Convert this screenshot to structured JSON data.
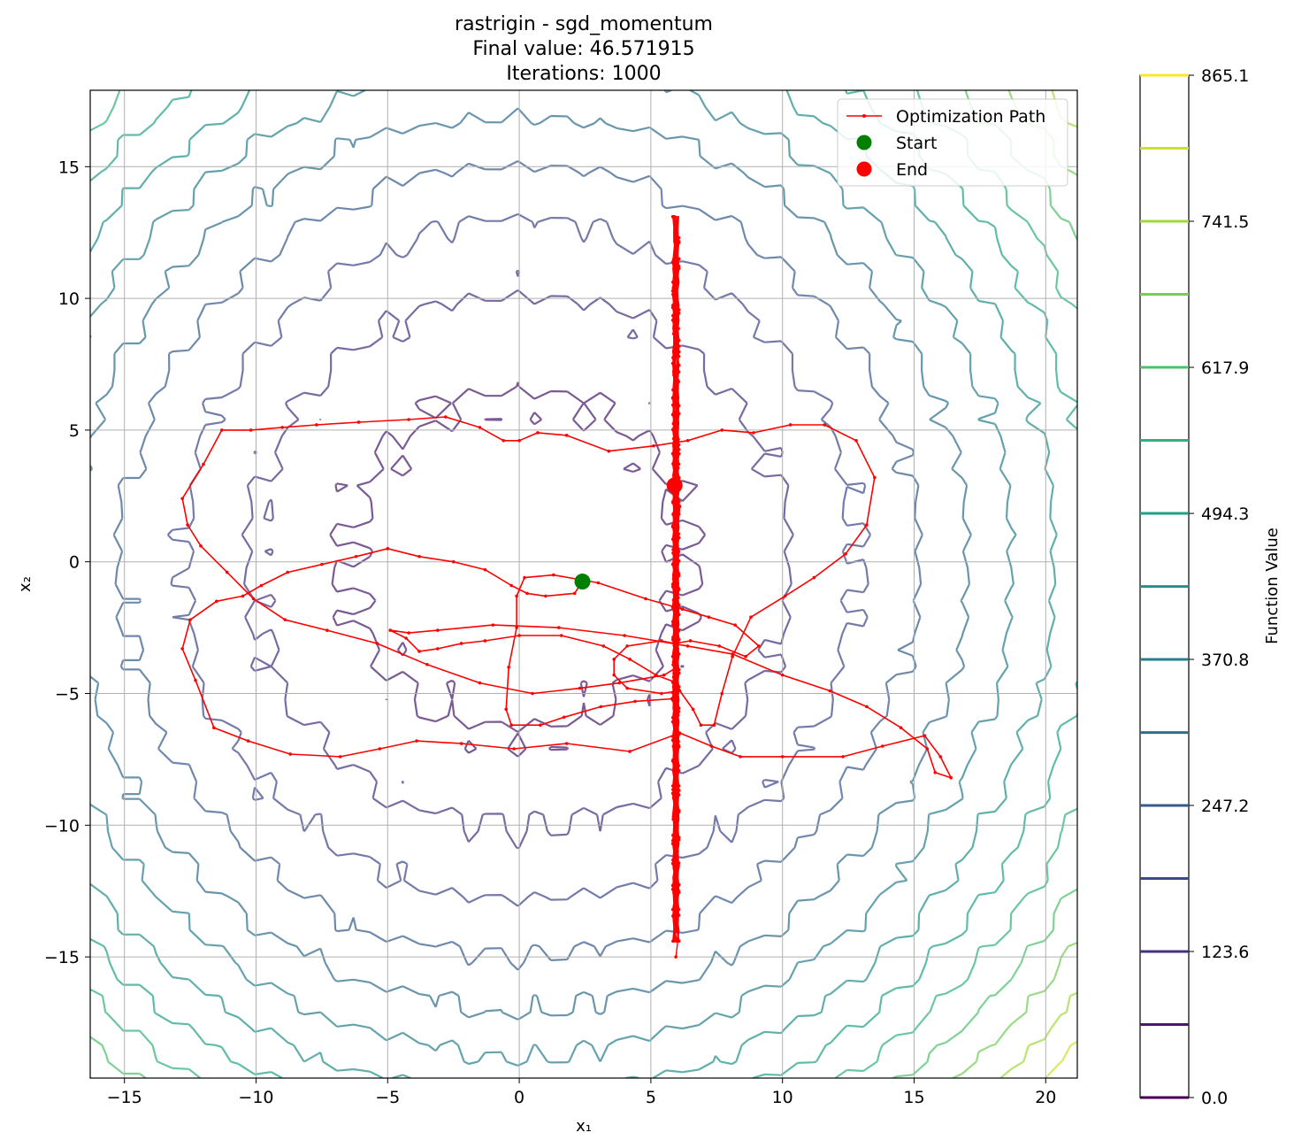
{
  "chart_data": {
    "type": "contour-line",
    "title_lines": [
      "rastrigin - sgd_momentum",
      "Final value: 46.571915",
      "Iterations: 1000"
    ],
    "xlabel": "x₁",
    "ylabel": "x₂",
    "xlim": [
      -16.3,
      21.2
    ],
    "ylim": [
      -19.6,
      17.9
    ],
    "xticks": [
      -15,
      -10,
      -5,
      0,
      5,
      10,
      15,
      20
    ],
    "xtick_labels": [
      "−15",
      "−10",
      "−5",
      "0",
      "5",
      "10",
      "15",
      "20"
    ],
    "yticks": [
      -15,
      -10,
      -5,
      0,
      5,
      10,
      15
    ],
    "ytick_labels": [
      "−15",
      "−10",
      "−5",
      "0",
      "5",
      "10",
      "15"
    ],
    "grid": true,
    "legend": {
      "position": "top-right",
      "entries": [
        "Optimization Path",
        "Start",
        "End"
      ]
    },
    "colorbar": {
      "label": "Function Value",
      "ticks": [
        0.0,
        123.6,
        247.2,
        370.8,
        494.3,
        617.9,
        741.5,
        865.1
      ],
      "tick_labels": [
        "0.0",
        "123.6",
        "247.2",
        "370.8",
        "494.3",
        "617.9",
        "741.5",
        "865.1"
      ],
      "levels": [
        61.8,
        123.6,
        185.4,
        247.2,
        308.9,
        370.8,
        432.5,
        494.3,
        556.1,
        617.9,
        679.7,
        741.5,
        803.3,
        865.1
      ],
      "colormap": "viridis"
    },
    "start": {
      "x": 2.4,
      "y": -0.75
    },
    "end": {
      "x": 5.9,
      "y": 2.9
    },
    "path_color": "#ff0000",
    "start_color": "#008000",
    "end_color": "#ff0000",
    "path": [
      [
        2.4,
        -0.75
      ],
      [
        2.1,
        -1.2
      ],
      [
        1.0,
        -1.3
      ],
      [
        0.3,
        -1.2
      ],
      [
        -0.3,
        -0.9
      ],
      [
        -1.3,
        -0.3
      ],
      [
        -2.5,
        0.0
      ],
      [
        -3.8,
        0.2
      ],
      [
        -5.0,
        0.5
      ],
      [
        -6.2,
        0.2
      ],
      [
        -7.5,
        -0.1
      ],
      [
        -8.8,
        -0.4
      ],
      [
        -9.8,
        -0.9
      ],
      [
        -10.5,
        -1.3
      ],
      [
        -11.5,
        -1.5
      ],
      [
        -12.5,
        -2.2
      ],
      [
        -12.8,
        -3.3
      ],
      [
        -12.3,
        -4.5
      ],
      [
        -11.6,
        -6.3
      ],
      [
        -10.3,
        -6.8
      ],
      [
        -8.7,
        -7.3
      ],
      [
        -6.8,
        -7.4
      ],
      [
        -5.3,
        -7.1
      ],
      [
        -3.9,
        -6.8
      ],
      [
        -2.2,
        -6.9
      ],
      [
        -0.2,
        -7.1
      ],
      [
        1.8,
        -6.9
      ],
      [
        4.2,
        -7.2
      ],
      [
        6.1,
        -6.5
      ],
      [
        7.3,
        -7.0
      ],
      [
        8.4,
        -7.4
      ],
      [
        10.0,
        -7.4
      ],
      [
        12.3,
        -7.4
      ],
      [
        13.8,
        -7.0
      ],
      [
        15.4,
        -6.6
      ],
      [
        16.0,
        -7.4
      ],
      [
        16.4,
        -8.2
      ],
      [
        15.8,
        -8.0
      ],
      [
        15.5,
        -7.1
      ],
      [
        14.5,
        -6.3
      ],
      [
        13.2,
        -5.5
      ],
      [
        11.8,
        -4.9
      ],
      [
        10.0,
        -4.3
      ],
      [
        8.1,
        -3.5
      ],
      [
        6.4,
        -3.2
      ],
      [
        4.0,
        -2.8
      ],
      [
        1.5,
        -2.5
      ],
      [
        -1.0,
        -2.4
      ],
      [
        -3.1,
        -2.6
      ],
      [
        -4.2,
        -2.7
      ],
      [
        -4.9,
        -2.6
      ],
      [
        -4.3,
        -2.9
      ],
      [
        -3.8,
        -3.4
      ],
      [
        -3.1,
        -3.3
      ],
      [
        -2.2,
        -3.1
      ],
      [
        -1.3,
        -3.0
      ],
      [
        0.0,
        -2.8
      ],
      [
        1.6,
        -2.8
      ],
      [
        3.2,
        -3.2
      ],
      [
        4.2,
        -3.7
      ],
      [
        5.2,
        -4.3
      ],
      [
        6.0,
        -4.6
      ],
      [
        5.8,
        -5.2
      ],
      [
        4.4,
        -5.3
      ],
      [
        3.1,
        -5.5
      ],
      [
        1.7,
        -5.9
      ],
      [
        0.8,
        -6.2
      ],
      [
        -0.3,
        -6.2
      ],
      [
        -0.5,
        -5.6
      ],
      [
        -0.4,
        -4.0
      ],
      [
        -0.1,
        -2.5
      ],
      [
        -0.1,
        -1.3
      ],
      [
        0.2,
        -0.6
      ],
      [
        1.3,
        -0.5
      ],
      [
        3.0,
        -0.8
      ],
      [
        4.8,
        -1.4
      ],
      [
        6.2,
        -1.8
      ],
      [
        7.2,
        -2.1
      ],
      [
        8.2,
        -2.4
      ],
      [
        9.1,
        -3.2
      ],
      [
        8.6,
        -3.6
      ],
      [
        7.6,
        -3.2
      ],
      [
        6.5,
        -3.0
      ],
      [
        5.9,
        -3.1
      ],
      [
        5.4,
        -3.0
      ],
      [
        4.1,
        -3.2
      ],
      [
        3.6,
        -3.7
      ],
      [
        3.6,
        -4.3
      ],
      [
        4.1,
        -4.8
      ],
      [
        5.4,
        -5.0
      ],
      [
        6.1,
        -4.9
      ],
      [
        6.6,
        -5.6
      ],
      [
        6.9,
        -6.2
      ],
      [
        7.4,
        -6.2
      ],
      [
        7.7,
        -5.0
      ],
      [
        8.1,
        -3.6
      ],
      [
        8.8,
        -2.1
      ],
      [
        10.1,
        -1.3
      ],
      [
        11.2,
        -0.6
      ],
      [
        12.4,
        0.3
      ],
      [
        13.2,
        1.4
      ],
      [
        13.5,
        3.2
      ],
      [
        12.8,
        4.6
      ],
      [
        11.6,
        5.2
      ],
      [
        10.3,
        5.2
      ],
      [
        8.9,
        4.9
      ],
      [
        7.7,
        5.0
      ],
      [
        6.4,
        4.6
      ],
      [
        5.1,
        4.4
      ],
      [
        3.4,
        4.2
      ],
      [
        1.8,
        4.8
      ],
      [
        0.7,
        4.9
      ],
      [
        0.0,
        4.6
      ],
      [
        -0.6,
        4.6
      ],
      [
        -1.5,
        5.1
      ],
      [
        -2.8,
        5.5
      ],
      [
        -4.2,
        5.4
      ],
      [
        -6.1,
        5.3
      ],
      [
        -7.7,
        5.2
      ],
      [
        -9.0,
        5.1
      ],
      [
        -10.2,
        5.0
      ],
      [
        -11.3,
        5.0
      ],
      [
        -12.0,
        3.7
      ],
      [
        -12.8,
        2.4
      ],
      [
        -12.6,
        1.4
      ],
      [
        -12.1,
        0.6
      ],
      [
        -11.1,
        -0.4
      ],
      [
        -10.1,
        -1.4
      ],
      [
        -8.9,
        -2.2
      ],
      [
        -7.3,
        -2.6
      ],
      [
        -5.4,
        -3.1
      ],
      [
        -3.5,
        -3.9
      ],
      [
        -1.5,
        -4.6
      ],
      [
        0.5,
        -5.0
      ],
      [
        2.3,
        -4.8
      ],
      [
        3.8,
        -4.6
      ],
      [
        5.5,
        -4.3
      ],
      [
        6.0,
        -4.0
      ],
      [
        5.9,
        -2.5
      ],
      [
        5.9,
        -0.5
      ],
      [
        6.0,
        1.0
      ],
      [
        6.1,
        2.1
      ],
      [
        5.9,
        2.9
      ]
    ],
    "vertical_scan": {
      "x": 5.95,
      "y_min": -15.0,
      "y_max": 13.1
    }
  }
}
